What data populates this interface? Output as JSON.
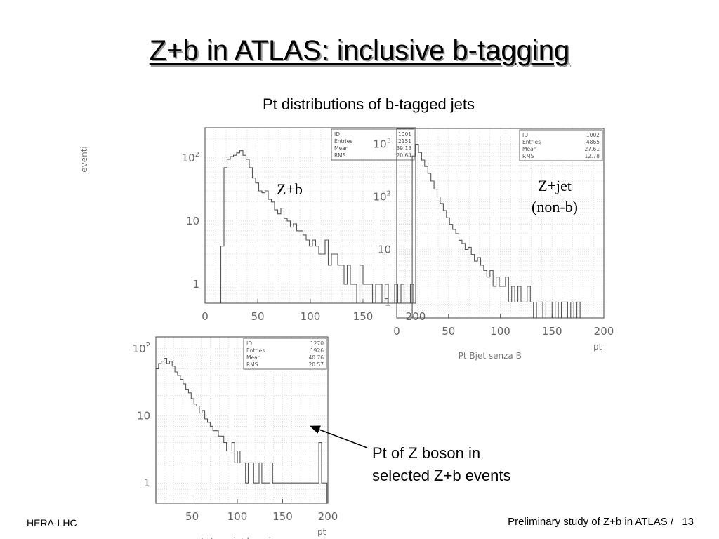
{
  "slide": {
    "title": "Z+b in ATLAS: inclusive b-tagging",
    "subtitle": "Pt distributions of b-tagged jets",
    "footer_left": "HERA-LHC",
    "footer_right": "Preliminary study of Z+b in ATLAS /",
    "page_number": "13"
  },
  "annotations": {
    "zb": "Z+b",
    "zjet_line1": "Z+jet",
    "zjet_line2": "(non-b)",
    "callout_line1": "Pt of Z boson in",
    "callout_line2": "selected Z+b events"
  },
  "colors": {
    "histogram": "#555555",
    "frame": "#444444",
    "grid": "#c8c8c8",
    "text": "#666666"
  },
  "chart_data": [
    {
      "type": "bar",
      "id": "zb",
      "ylabel": "eventi",
      "xlabel": "",
      "xlim": [
        0,
        200
      ],
      "ylim": [
        0.5,
        300
      ],
      "yscale": "log",
      "xticks": [
        "0",
        "50",
        "100",
        "150",
        "200"
      ],
      "yticks": [
        {
          "value": 1,
          "label": "1"
        },
        {
          "value": 10,
          "label": "10"
        },
        {
          "value": 100,
          "label": "10",
          "exp": "2"
        }
      ],
      "stats": [
        {
          "label": "ID",
          "value": "1001"
        },
        {
          "label": "Entries",
          "value": "2151"
        },
        {
          "label": "Mean",
          "value": "39.18"
        },
        {
          "label": "RMS",
          "value": "20.64"
        }
      ],
      "bin_edges": [
        15,
        18,
        21,
        24,
        27,
        30,
        33,
        36,
        39,
        42,
        45,
        48,
        51,
        54,
        57,
        60,
        63,
        66,
        69,
        72,
        75,
        78,
        81,
        84,
        87,
        90,
        93,
        96,
        99,
        102,
        105,
        108,
        111,
        114,
        117,
        120,
        123,
        126,
        129,
        132,
        135,
        138,
        141,
        144,
        147,
        150,
        153,
        156,
        159,
        162,
        165,
        168,
        171,
        174,
        177,
        180,
        183,
        186,
        189,
        192,
        195,
        198
      ],
      "values": [
        4,
        70,
        95,
        105,
        110,
        120,
        130,
        110,
        95,
        70,
        48,
        40,
        30,
        28,
        30,
        22,
        20,
        15,
        13,
        16,
        11,
        10,
        8,
        9,
        7,
        7,
        6,
        5,
        4,
        5,
        4,
        3,
        3,
        5,
        2,
        3,
        3,
        2,
        2,
        1,
        2,
        1,
        1,
        0,
        2,
        1,
        1,
        1,
        0,
        1,
        1,
        0,
        1,
        0,
        0,
        1,
        0,
        1,
        0,
        0,
        1
      ]
    },
    {
      "type": "bar",
      "id": "zjet",
      "ylabel": "",
      "xlabel": "Pt Bjet senza B",
      "xunit": "pt",
      "xlim": [
        0,
        200
      ],
      "ylim": [
        0.5,
        2000
      ],
      "yscale": "log",
      "xticks": [
        "0",
        "50",
        "100",
        "150",
        "200"
      ],
      "yticks": [
        {
          "value": 1,
          "label": "1"
        },
        {
          "value": 10,
          "label": "10"
        },
        {
          "value": 100,
          "label": "10",
          "exp": "2"
        },
        {
          "value": 1000,
          "label": "10",
          "exp": "3"
        }
      ],
      "stats": [
        {
          "label": "ID",
          "value": "1002"
        },
        {
          "label": "Entries",
          "value": "4865"
        },
        {
          "label": "Mean",
          "value": "27.61"
        },
        {
          "label": "RMS",
          "value": "12.78"
        }
      ],
      "bin_edges": [
        15,
        18,
        21,
        24,
        27,
        30,
        33,
        36,
        39,
        42,
        45,
        48,
        51,
        54,
        57,
        60,
        63,
        66,
        69,
        72,
        75,
        78,
        81,
        84,
        87,
        90,
        93,
        96,
        99,
        102,
        105,
        108,
        111,
        114,
        117,
        120,
        123,
        126,
        129,
        132,
        135,
        138,
        141,
        144,
        147,
        150,
        153,
        156,
        159,
        162,
        165,
        168,
        171,
        174,
        177,
        180
      ],
      "values": [
        600,
        1000,
        700,
        500,
        380,
        280,
        200,
        140,
        100,
        75,
        55,
        40,
        30,
        24,
        20,
        15,
        13,
        10,
        11,
        8,
        6,
        7,
        5,
        4,
        3,
        4,
        2,
        3,
        2,
        2,
        3,
        1,
        2,
        1,
        2,
        1,
        1,
        2,
        1,
        0,
        1,
        1,
        0,
        1,
        1,
        0,
        1,
        0,
        1,
        1,
        0,
        1,
        0,
        1,
        0
      ]
    },
    {
      "type": "bar",
      "id": "zpt",
      "ylabel": "",
      "xlabel": "pt Z con jet b veri",
      "xunit": "pt",
      "xlim": [
        10,
        200
      ],
      "ylim": [
        0.5,
        150
      ],
      "yscale": "log",
      "xticks": [
        "50",
        "100",
        "150",
        "200"
      ],
      "yticks": [
        {
          "value": 1,
          "label": "1"
        },
        {
          "value": 10,
          "label": "10"
        },
        {
          "value": 100,
          "label": "10",
          "exp": "2"
        }
      ],
      "stats": [
        {
          "label": "ID",
          "value": "1270"
        },
        {
          "label": "Entries",
          "value": "1926"
        },
        {
          "label": "Mean",
          "value": "40.76"
        },
        {
          "label": "RMS",
          "value": "20.57"
        }
      ],
      "bin_edges": [
        10,
        13,
        16,
        19,
        22,
        25,
        28,
        31,
        34,
        37,
        40,
        43,
        46,
        49,
        52,
        55,
        58,
        61,
        64,
        67,
        70,
        73,
        76,
        79,
        82,
        85,
        88,
        91,
        94,
        97,
        100,
        103,
        106,
        109,
        112,
        115,
        118,
        121,
        124,
        127,
        130,
        133,
        136,
        139,
        142,
        145,
        148,
        151,
        154,
        157,
        160,
        163,
        166,
        169,
        172,
        175,
        178,
        181,
        184,
        187,
        190,
        193,
        196,
        199
      ],
      "values": [
        50,
        60,
        65,
        72,
        60,
        65,
        55,
        45,
        40,
        35,
        30,
        25,
        22,
        18,
        15,
        14,
        11,
        12,
        9,
        8,
        7,
        6,
        6,
        5,
        5,
        4,
        3,
        3,
        4,
        2,
        3,
        2,
        2,
        1,
        2,
        2,
        1,
        1,
        2,
        1,
        1,
        1,
        2,
        1,
        1,
        1,
        1,
        1,
        1,
        1,
        1,
        1,
        1,
        1,
        1,
        1,
        1,
        1,
        1,
        1,
        4,
        1,
        1
      ]
    }
  ]
}
